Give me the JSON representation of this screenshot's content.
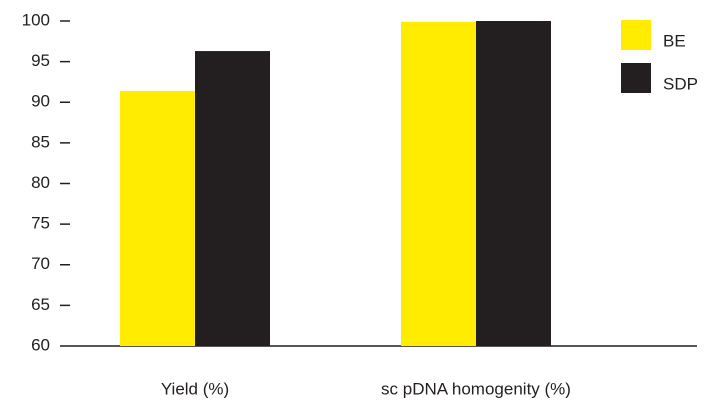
{
  "chart_data": {
    "type": "bar",
    "categories": [
      "Yield (%)",
      "sc pDNA homogenity (%)"
    ],
    "series": [
      {
        "name": "BE",
        "color": "#ffec00",
        "values": [
          91.4,
          99.9
        ]
      },
      {
        "name": "SDP",
        "color": "#231f20",
        "values": [
          96.3,
          100
        ]
      }
    ],
    "ylim": [
      60,
      100
    ],
    "yticks": [
      60,
      65,
      70,
      75,
      80,
      85,
      90,
      95,
      100
    ],
    "legend": "top-right"
  }
}
